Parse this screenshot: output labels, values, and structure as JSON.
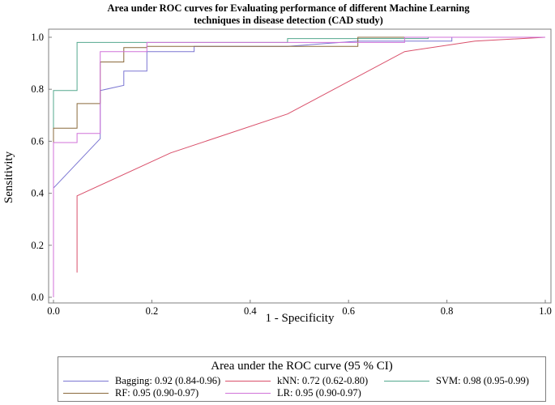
{
  "chart_data": {
    "type": "line",
    "title": "Area under ROC curves for Evaluating performance of different Machine Learning techniques in disease detection (CAD study)",
    "title_lines": [
      "Area under ROC curves for Evaluating performance of different Machine Learning",
      "techniques in disease detection (CAD study)"
    ],
    "xlabel": "1 - Specificity",
    "ylabel": "Sensitivity",
    "xlim": [
      0,
      1
    ],
    "ylim": [
      0,
      1
    ],
    "xticks": [
      "0.0",
      "0.2",
      "0.4",
      "0.6",
      "0.8",
      "1.0"
    ],
    "yticks": [
      "0.0",
      "0.2",
      "0.4",
      "0.6",
      "0.8",
      "1.0"
    ],
    "grid": false,
    "legend_title": "Area under the ROC curve (95 % CI)",
    "legend_position": "bottom",
    "series": [
      {
        "name": "Bagging: 0.92 (0.84-0.96)",
        "color": "#7b76d2",
        "x": [
          0,
          0,
          0.095,
          0.095,
          0.143,
          0.143,
          0.19,
          0.19,
          0.286,
          0.286,
          0.476,
          0.62,
          0.62,
          0.81,
          0.81,
          1.0
        ],
        "y": [
          0.02,
          0.42,
          0.61,
          0.795,
          0.815,
          0.87,
          0.87,
          0.945,
          0.945,
          0.965,
          0.965,
          0.985,
          0.985,
          0.985,
          1.0,
          1.0
        ]
      },
      {
        "name": "kNN: 0.72 (0.62-0.80)",
        "color": "#d94f6a",
        "x": [
          0.048,
          0.048,
          0.238,
          0.476,
          0.714,
          0.857,
          1.0
        ],
        "y": [
          0.095,
          0.39,
          0.555,
          0.705,
          0.945,
          0.985,
          1.0
        ]
      },
      {
        "name": "SVM: 0.98 (0.95-0.99)",
        "color": "#53a88e",
        "x": [
          0,
          0,
          0.048,
          0.048,
          0.476,
          0.476,
          0.762,
          0.762,
          1.0
        ],
        "y": [
          0.0,
          0.795,
          0.795,
          0.98,
          0.98,
          0.995,
          0.995,
          1.0,
          1.0
        ]
      },
      {
        "name": "RF: 0.95 (0.90-0.97)",
        "color": "#8a6a3c",
        "x": [
          0,
          0,
          0.048,
          0.048,
          0.095,
          0.095,
          0.143,
          0.143,
          0.19,
          0.19,
          0.619,
          0.619,
          1.0
        ],
        "y": [
          0.0,
          0.65,
          0.65,
          0.745,
          0.745,
          0.905,
          0.905,
          0.96,
          0.96,
          0.965,
          0.965,
          1.0,
          1.0
        ]
      },
      {
        "name": "LR: 0.95 (0.90-0.97)",
        "color": "#d072d9",
        "x": [
          0,
          0,
          0.048,
          0.048,
          0.095,
          0.095,
          0.19,
          0.19,
          0.714,
          0.714,
          1.0
        ],
        "y": [
          0.0,
          0.595,
          0.595,
          0.63,
          0.63,
          0.945,
          0.945,
          0.98,
          0.98,
          1.0,
          1.0
        ]
      }
    ]
  }
}
